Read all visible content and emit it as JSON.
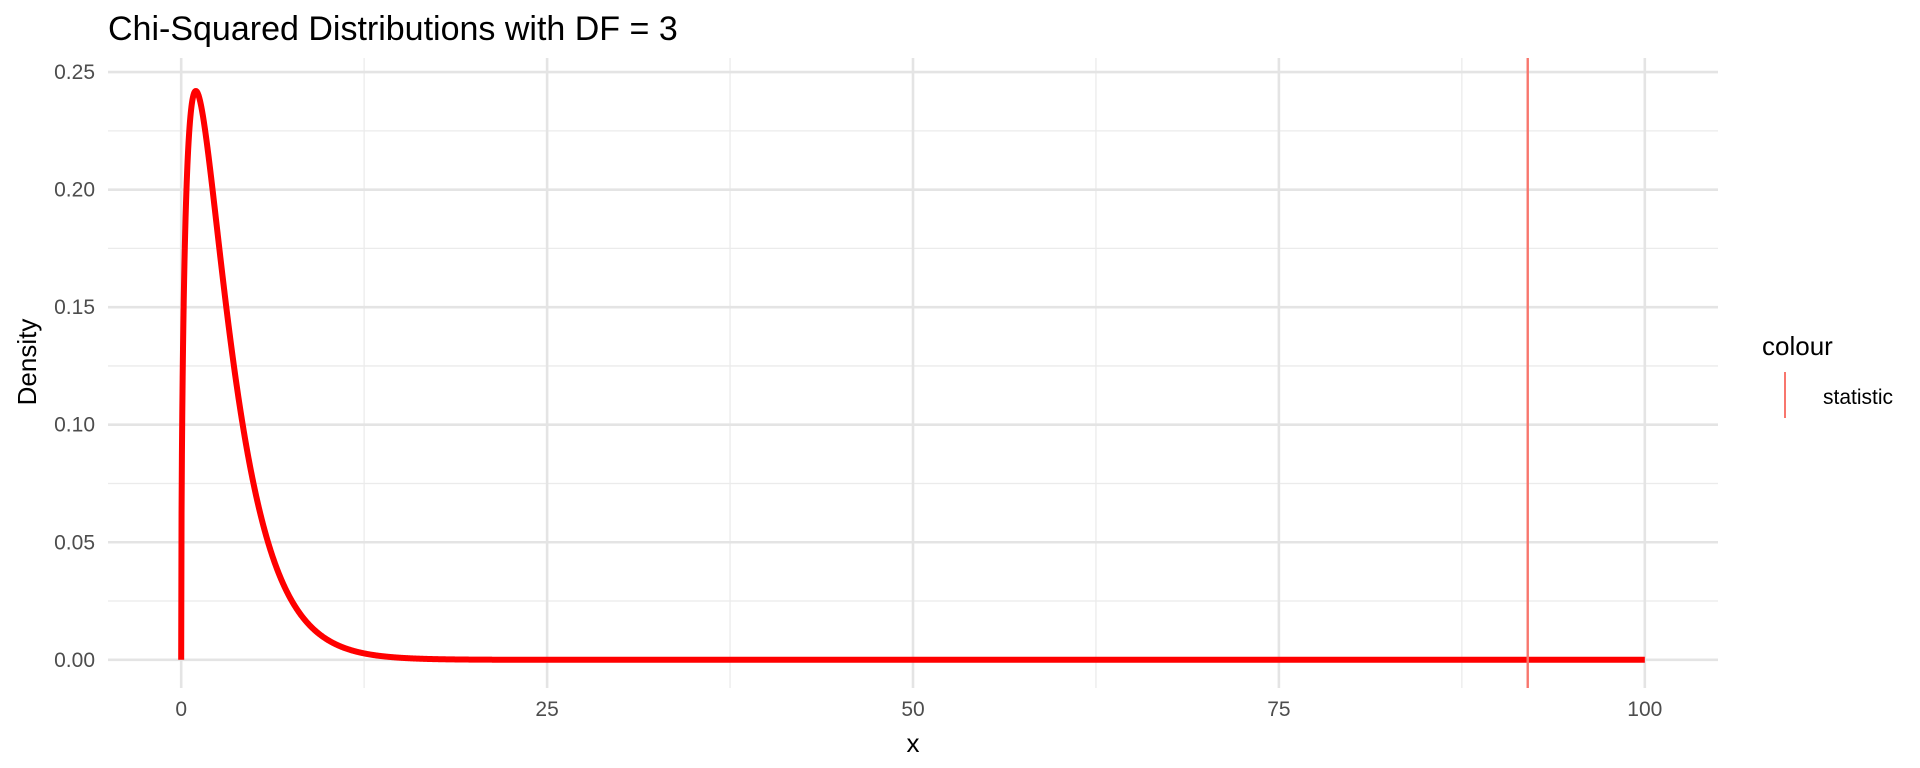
{
  "chart_data": {
    "type": "line",
    "title": "Chi-Squared Distributions with DF = 3",
    "xlabel": "x",
    "ylabel": "Density",
    "xlim": [
      -5,
      105
    ],
    "ylim": [
      -0.012,
      0.256
    ],
    "x_ticks": [
      0,
      25,
      50,
      75,
      100
    ],
    "x_tick_labels": [
      "0",
      "25",
      "50",
      "75",
      "100"
    ],
    "y_ticks": [
      0.0,
      0.05,
      0.1,
      0.15,
      0.2,
      0.25
    ],
    "y_tick_labels": [
      "0.00",
      "0.05",
      "0.10",
      "0.15",
      "0.20",
      "0.25"
    ],
    "grid": true,
    "series": [
      {
        "distribution": "chi-squared",
        "df": 3,
        "x_range": [
          0,
          100
        ],
        "color": "#ff0000",
        "sample_points": [
          {
            "x": 0,
            "y": 0.0
          },
          {
            "x": 1,
            "y": 0.242
          },
          {
            "x": 2,
            "y": 0.208
          },
          {
            "x": 3,
            "y": 0.154
          },
          {
            "x": 5,
            "y": 0.073
          },
          {
            "x": 8,
            "y": 0.021
          },
          {
            "x": 10,
            "y": 0.0085
          },
          {
            "x": 15,
            "y": 0.0009
          },
          {
            "x": 25,
            "y": 0.0
          },
          {
            "x": 100,
            "y": 0.0
          }
        ]
      }
    ],
    "vline": {
      "x": 92,
      "color": "#f8766d"
    },
    "legend": {
      "title": "colour",
      "position": "right",
      "entries": [
        {
          "label": "statistic",
          "color": "#f8766d"
        }
      ]
    }
  }
}
